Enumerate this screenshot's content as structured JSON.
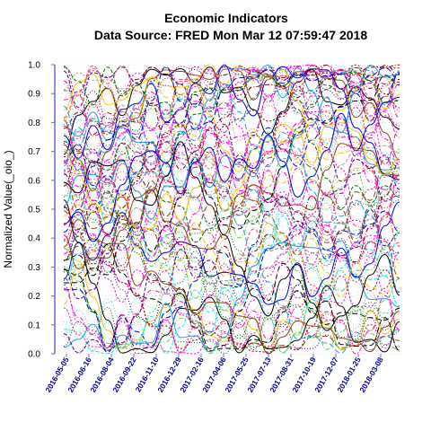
{
  "chart_data": {
    "type": "line",
    "title": "Economic Indicators",
    "subtitle": "Data Source: FRED  Mon Mar 12 07:59:47 2018",
    "xlabel": "",
    "ylabel": "Normalized Value(_oio_)",
    "ylim": [
      0.0,
      1.0
    ],
    "yticks": [
      "0.0",
      "0.1",
      "0.2",
      "0.3",
      "0.4",
      "0.5",
      "0.6",
      "0.7",
      "0.8",
      "0.9",
      "1.0"
    ],
    "xlim": [
      "2016-05-05",
      "2018-03-08"
    ],
    "xticks": [
      "2016-05-05",
      "2016-06-16",
      "2016-08-04",
      "2016-09-22",
      "2016-11-10",
      "2016-12-29",
      "2017-02-16",
      "2017-04-06",
      "2017-05-25",
      "2017-07-13",
      "2017-08-31",
      "2017-10-19",
      "2017-12-07",
      "2018-01-25",
      "2018-03-08"
    ],
    "grid": true,
    "legend": "none",
    "palette": [
      "#000000",
      "#DF536B",
      "#61D04F",
      "#2297E6",
      "#28E2E5",
      "#CD0BBC",
      "#F5C710",
      "#9E9E9E",
      "#8B0000",
      "#0000CD",
      "#006400",
      "#FF00FF",
      "#8B4513",
      "#4B0082",
      "#FF1493"
    ],
    "axis_color": "#6b6bd6",
    "tick_label_color": "#00008B",
    "series_note_values": {
      "many_series": true
    }
  }
}
